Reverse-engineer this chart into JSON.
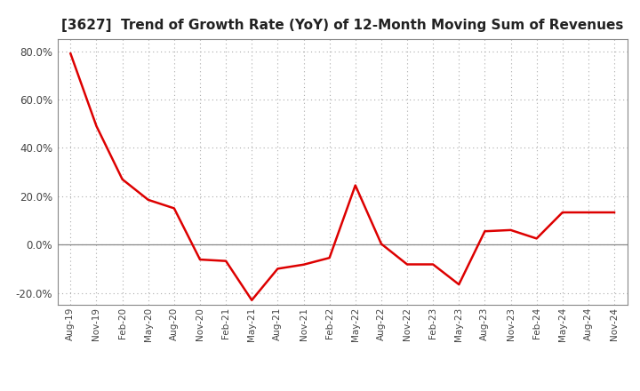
{
  "title": "[3627]  Trend of Growth Rate (YoY) of 12-Month Moving Sum of Revenues",
  "title_fontsize": 11,
  "line_color": "#dd0000",
  "background_color": "#ffffff",
  "plot_bg_color": "#ffffff",
  "grid_color": "#aaaaaa",
  "ylim": [
    -0.25,
    0.85
  ],
  "yticks": [
    -0.2,
    0.0,
    0.2,
    0.4,
    0.6,
    0.8
  ],
  "x_labels": [
    "Aug-19",
    "Nov-19",
    "Feb-20",
    "May-20",
    "Aug-20",
    "Nov-20",
    "Feb-21",
    "May-21",
    "Aug-21",
    "Nov-21",
    "Feb-22",
    "May-22",
    "Aug-22",
    "Nov-22",
    "Feb-23",
    "May-23",
    "Aug-23",
    "Nov-23",
    "Feb-24",
    "May-24",
    "Aug-24",
    "Nov-24"
  ],
  "y_values": [
    0.79,
    0.49,
    0.27,
    0.185,
    0.15,
    -0.062,
    -0.068,
    -0.23,
    -0.1,
    -0.083,
    -0.055,
    0.245,
    0.003,
    -0.082,
    -0.082,
    -0.165,
    0.055,
    0.06,
    0.025,
    0.133,
    0.133,
    0.133
  ]
}
